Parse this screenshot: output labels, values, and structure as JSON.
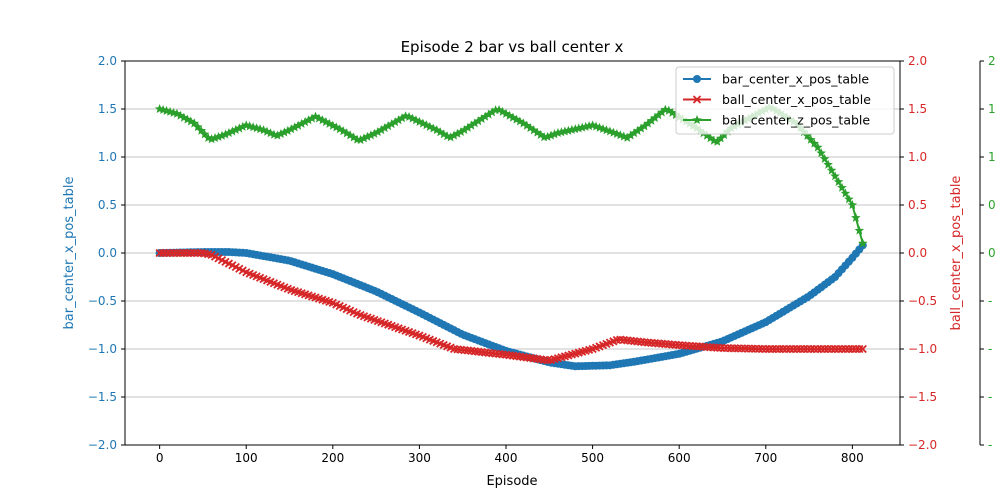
{
  "chart_data": {
    "type": "line",
    "title": "Episode 2 bar vs ball center x",
    "xlabel": "Episode",
    "xlim": [
      -40,
      855
    ],
    "x_ticks": [
      0,
      100,
      200,
      300,
      400,
      500,
      600,
      700,
      800
    ],
    "grid": "horizontal",
    "legend_position": "top-right",
    "axes": [
      {
        "id": "left",
        "label": "bar_center_x_pos_table",
        "color": "#1f77b4",
        "ylim": [
          -2.0,
          2.0
        ],
        "ticks": [
          "2.0",
          "1.5",
          "1.0",
          "0.5",
          "0.0",
          "−0.5",
          "−1.0",
          "−1.5",
          "−2.0"
        ]
      },
      {
        "id": "right",
        "label": "ball_center_x_pos_table",
        "color": "#d62728",
        "ylim": [
          -2.0,
          2.0
        ],
        "ticks": [
          "2.0",
          "1.5",
          "1.0",
          "0.5",
          "0.0",
          "−0.5",
          "−1.0",
          "−1.5",
          "−2.0"
        ]
      },
      {
        "id": "far_right",
        "label": "",
        "color": "#2ca02c",
        "ylim": [
          -2.0,
          2.0
        ],
        "ticks": [
          "2",
          "1",
          "1",
          "0",
          "0",
          "-",
          "-",
          "-",
          "-"
        ]
      }
    ],
    "series": [
      {
        "name": "bar_center_x_pos_table",
        "color": "#1f77b4",
        "marker": "o",
        "axis": "left",
        "x": [
          0,
          50,
          80,
          100,
          150,
          200,
          250,
          300,
          350,
          400,
          450,
          480,
          520,
          550,
          600,
          650,
          700,
          750,
          780,
          800,
          812
        ],
        "y": [
          0.0,
          0.01,
          0.01,
          0.0,
          -0.08,
          -0.22,
          -0.4,
          -0.62,
          -0.85,
          -1.02,
          -1.14,
          -1.18,
          -1.17,
          -1.13,
          -1.05,
          -0.92,
          -0.72,
          -0.45,
          -0.25,
          -0.05,
          0.08
        ]
      },
      {
        "name": "ball_center_x_pos_table",
        "color": "#d62728",
        "marker": "x",
        "axis": "right",
        "x": [
          0,
          50,
          60,
          100,
          150,
          200,
          230,
          300,
          340,
          400,
          450,
          500,
          530,
          560,
          600,
          650,
          700,
          750,
          812
        ],
        "y": [
          0.0,
          0.0,
          -0.02,
          -0.2,
          -0.38,
          -0.52,
          -0.64,
          -0.86,
          -1.0,
          -1.06,
          -1.12,
          -1.0,
          -0.9,
          -0.93,
          -0.96,
          -0.99,
          -1.0,
          -1.0,
          -1.0
        ]
      },
      {
        "name": "ball_center_z_pos_table",
        "color": "#2ca02c",
        "marker": "*",
        "axis": "far_right",
        "x": [
          0,
          20,
          40,
          58,
          75,
          100,
          120,
          135,
          150,
          180,
          210,
          230,
          250,
          285,
          320,
          335,
          350,
          390,
          420,
          445,
          460,
          500,
          525,
          540,
          560,
          585,
          620,
          643,
          660,
          705,
          735,
          760,
          780,
          800,
          812
        ],
        "y": [
          1.5,
          1.45,
          1.35,
          1.18,
          1.23,
          1.33,
          1.28,
          1.22,
          1.28,
          1.42,
          1.28,
          1.17,
          1.25,
          1.43,
          1.28,
          1.2,
          1.27,
          1.5,
          1.35,
          1.2,
          1.25,
          1.33,
          1.25,
          1.2,
          1.32,
          1.5,
          1.3,
          1.15,
          1.3,
          1.52,
          1.35,
          1.1,
          0.8,
          0.5,
          0.1
        ]
      }
    ]
  }
}
